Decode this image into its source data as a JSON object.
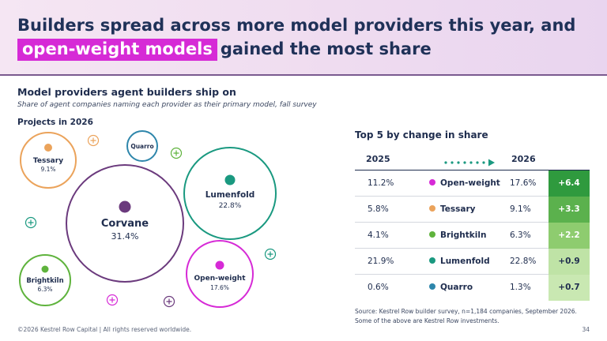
{
  "header": {
    "title_line1": "Builders spread across more model providers this year, and",
    "title_highlight": "open-weight models",
    "title_line2_rest": "gained the most share"
  },
  "section": {
    "title": "Model providers agent builders ship on",
    "subtitle": "Share of agent companies naming each provider as their primary model, fall survey",
    "projects_label": "Projects in 2026"
  },
  "bubbles": [
    {
      "name": "Corvane",
      "value": "31.4%",
      "color": "#6b3a7d"
    },
    {
      "name": "Lumenfold",
      "value": "22.8%",
      "color": "#1a9980"
    },
    {
      "name": "Open-weight",
      "value": "17.6%",
      "color": "#d62ad6"
    },
    {
      "name": "Tessary",
      "value": "9.1%",
      "color": "#eba35b"
    },
    {
      "name": "Brightkiln",
      "value": "6.3%",
      "color": "#5fb33d"
    },
    {
      "name": "Quarro",
      "value": "",
      "color": "#2e86ab"
    }
  ],
  "table": {
    "title": "Top 5 by change in share",
    "col_2025": "2025",
    "col_2026": "2026",
    "rows": [
      {
        "v2025": "11.2%",
        "name": "Open-weight",
        "v2026": "17.6%",
        "change": "+6.4",
        "dot_color": "#d62ad6",
        "change_bg": "#2f9a3e",
        "change_fg": "#ffffff"
      },
      {
        "v2025": "5.8%",
        "name": "Tessary",
        "v2026": "9.1%",
        "change": "+3.3",
        "dot_color": "#eba35b",
        "change_bg": "#5bb14d",
        "change_fg": "#ffffff"
      },
      {
        "v2025": "4.1%",
        "name": "Brightkiln",
        "v2026": "6.3%",
        "change": "+2.2",
        "dot_color": "#5fb33d",
        "change_bg": "#8ecc6f",
        "change_fg": "#ffffff"
      },
      {
        "v2025": "21.9%",
        "name": "Lumenfold",
        "v2026": "22.8%",
        "change": "+0.9",
        "dot_color": "#1a9980",
        "change_bg": "#bfe3a6",
        "change_fg": "#1f2d4e"
      },
      {
        "v2025": "0.6%",
        "name": "Quarro",
        "v2026": "1.3%",
        "change": "+0.7",
        "dot_color": "#2e86ab",
        "change_bg": "#c9e8b2",
        "change_fg": "#1f2d4e"
      }
    ]
  },
  "source": {
    "line1": "Source: Kestrel Row builder survey, n=1,184 companies, September 2026.",
    "line2": "Some of the above are Kestrel Row investments."
  },
  "footer": {
    "copyright": "©2026 Kestrel Row Capital | All rights reserved worldwide.",
    "page_number": "34"
  },
  "colors": {
    "title": "#1f3158",
    "highlight": "#d62ad6",
    "text": "#1f2d4e"
  }
}
